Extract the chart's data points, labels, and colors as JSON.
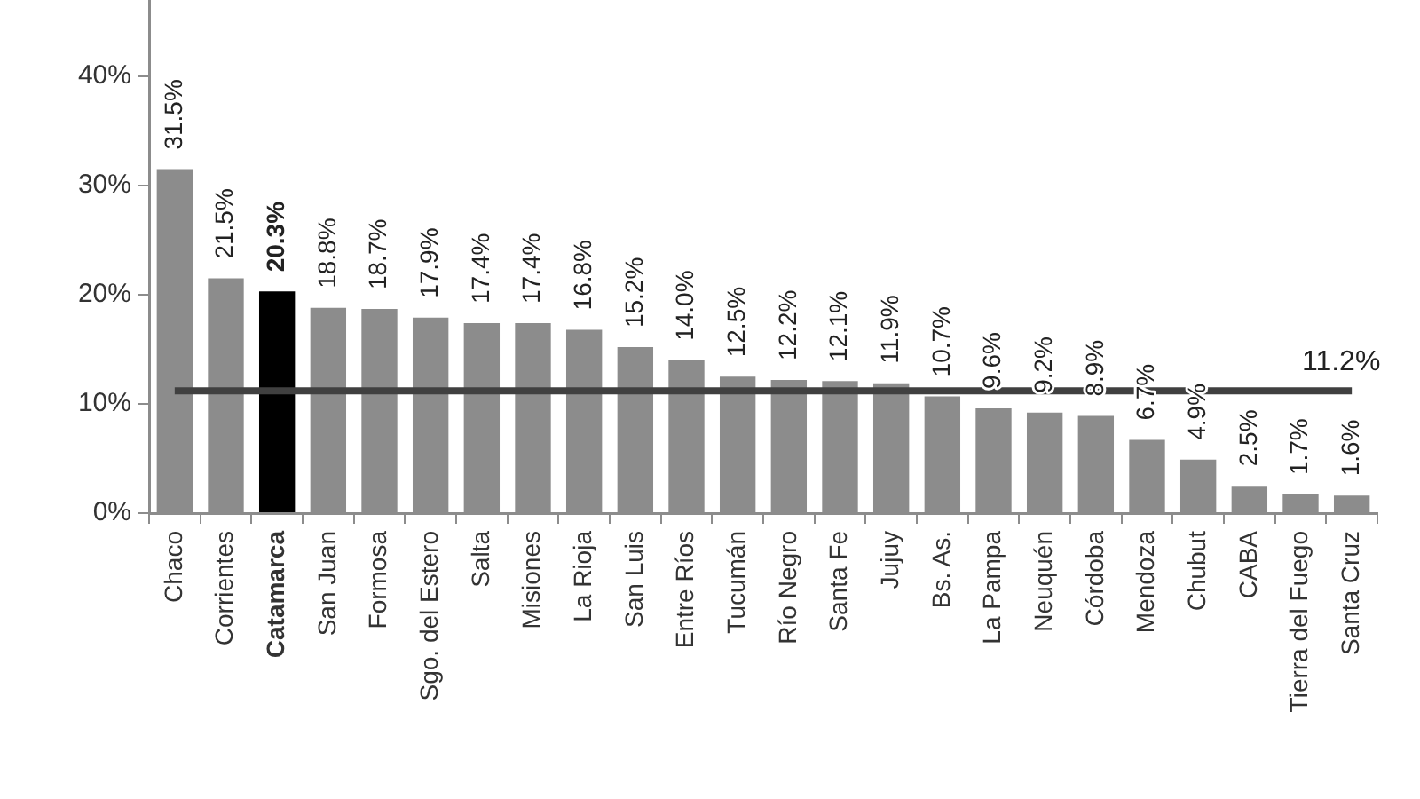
{
  "chart_data": {
    "type": "bar",
    "categories": [
      "Chaco",
      "Corrientes",
      "Catamarca",
      "San Juan",
      "Formosa",
      "Sgo. del Estero",
      "Salta",
      "Misiones",
      "La Rioja",
      "San Luis",
      "Entre Ríos",
      "Tucumán",
      "Río Negro",
      "Santa Fe",
      "Jujuy",
      "Bs. As.",
      "La Pampa",
      "Neuquén",
      "Córdoba",
      "Mendoza",
      "Chubut",
      "CABA",
      "Tierra del Fuego",
      "Santa Cruz"
    ],
    "values": [
      31.5,
      21.5,
      20.3,
      18.8,
      18.7,
      17.9,
      17.4,
      17.4,
      16.8,
      15.2,
      14.0,
      12.5,
      12.2,
      12.1,
      11.9,
      10.7,
      9.6,
      9.2,
      8.9,
      6.7,
      4.9,
      2.5,
      1.7,
      1.6
    ],
    "colors": [
      "#8c8c8c",
      "#8c8c8c",
      "#000000",
      "#8c8c8c",
      "#8c8c8c",
      "#8c8c8c",
      "#8c8c8c",
      "#8c8c8c",
      "#8c8c8c",
      "#8c8c8c",
      "#8c8c8c",
      "#8c8c8c",
      "#8c8c8c",
      "#8c8c8c",
      "#8c8c8c",
      "#8c8c8c",
      "#8c8c8c",
      "#8c8c8c",
      "#8c8c8c",
      "#8c8c8c",
      "#8c8c8c",
      "#8c8c8c",
      "#8c8c8c",
      "#8c8c8c"
    ],
    "value_labels": [
      "31.5%",
      "21.5%",
      "20.3%",
      "18.8%",
      "18.7%",
      "17.9%",
      "17.4%",
      "17.4%",
      "16.8%",
      "15.2%",
      "14.0%",
      "12.5%",
      "12.2%",
      "12.1%",
      "11.9%",
      "10.7%",
      "9.6%",
      "9.2%",
      "8.9%",
      "6.7%",
      "4.9%",
      "2.5%",
      "1.7%",
      "1.6%"
    ],
    "ylim": [
      0,
      47
    ],
    "yticks": [
      {
        "value": 0,
        "label": "0%"
      },
      {
        "value": 10,
        "label": "10%"
      },
      {
        "value": 20,
        "label": "20%"
      },
      {
        "value": 30,
        "label": "30%"
      },
      {
        "value": 40,
        "label": "40%"
      }
    ],
    "grid": false,
    "legend": false,
    "ref_lines": [
      {
        "axis": "y",
        "value": 11.2,
        "label": "11.2%",
        "color": "#404040"
      }
    ]
  }
}
